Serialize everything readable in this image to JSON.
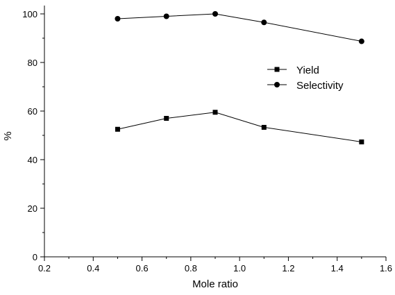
{
  "chart_data": {
    "type": "line",
    "title": "",
    "xlabel": "Mole ratio",
    "ylabel": "%",
    "xlim": [
      0.2,
      1.6
    ],
    "ylim": [
      0,
      100
    ],
    "x_ticks": [
      "0.2",
      "0.4",
      "0.6",
      "0.8",
      "1.0",
      "1.2",
      "1.4",
      "1.6"
    ],
    "y_ticks": [
      "0",
      "20",
      "40",
      "60",
      "80",
      "100"
    ],
    "grid": false,
    "legend_position": "right",
    "x": [
      0.5,
      0.7,
      0.9,
      1.1,
      1.5
    ],
    "series": [
      {
        "name": "Yield",
        "marker": "square",
        "values": [
          52.5,
          57.0,
          59.5,
          53.3,
          47.3
        ]
      },
      {
        "name": "Selectivity",
        "marker": "circle",
        "values": [
          98.0,
          99.0,
          100.0,
          96.5,
          88.7
        ]
      }
    ]
  }
}
